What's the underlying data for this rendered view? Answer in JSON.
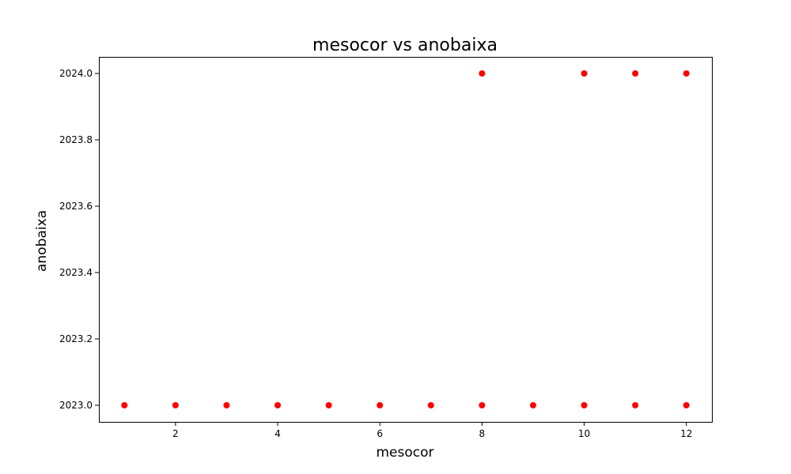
{
  "chart_data": {
    "type": "scatter",
    "title": "mesocor vs anobaixa",
    "xlabel": "mesocor",
    "ylabel": "anobaixa",
    "xlim": [
      0.5,
      12.5
    ],
    "ylim": [
      2022.95,
      2024.05
    ],
    "xticks": [
      2,
      4,
      6,
      8,
      10,
      12
    ],
    "yticks": [
      2023.0,
      2023.2,
      2023.4,
      2023.6,
      2023.8,
      2024.0
    ],
    "xtick_labels": [
      "2",
      "4",
      "6",
      "8",
      "10",
      "12"
    ],
    "ytick_labels": [
      "2023.0",
      "2023.2",
      "2023.4",
      "2023.6",
      "2023.8",
      "2024.0"
    ],
    "grid": false,
    "marker_color": "#ff0000",
    "points": [
      {
        "x": 1,
        "y": 2023
      },
      {
        "x": 2,
        "y": 2023
      },
      {
        "x": 3,
        "y": 2023
      },
      {
        "x": 4,
        "y": 2023
      },
      {
        "x": 5,
        "y": 2023
      },
      {
        "x": 6,
        "y": 2023
      },
      {
        "x": 7,
        "y": 2023
      },
      {
        "x": 8,
        "y": 2023
      },
      {
        "x": 9,
        "y": 2023
      },
      {
        "x": 10,
        "y": 2023
      },
      {
        "x": 11,
        "y": 2023
      },
      {
        "x": 12,
        "y": 2023
      },
      {
        "x": 8,
        "y": 2024
      },
      {
        "x": 10,
        "y": 2024
      },
      {
        "x": 11,
        "y": 2024
      },
      {
        "x": 12,
        "y": 2024
      }
    ]
  }
}
